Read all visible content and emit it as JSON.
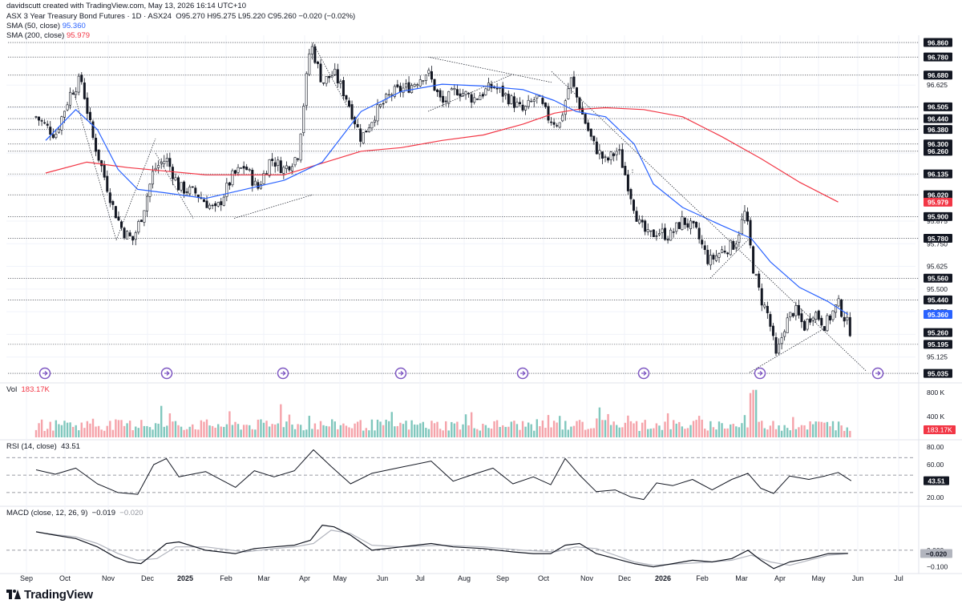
{
  "header": {
    "credit": "davidscutt created with TradingView.com, May 13, 2026 16:14 UTC+10",
    "symbol_line": "ASX 3 Year Treasury Bond Futures · 1D · ASX24",
    "ohlc": "O95.270  H95.275  L95.220  C95.260  −0.020 (−0.02%)",
    "sma50_label": "SMA (50, close)",
    "sma50_value": "95.360",
    "sma200_label": "SMA (200, close)",
    "sma200_value": "95.979",
    "vol_label": "Vol",
    "vol_value": "183.17K",
    "rsi_label": "RSI (14, close)",
    "rsi_value": "43.51",
    "macd_label": "MACD (close, 12, 26, 9)",
    "macd_value1": "−0.019",
    "macd_value2": "−0.020"
  },
  "brand": "TradingView",
  "colors": {
    "up": "#089981",
    "down": "#f23645",
    "sma50": "#2962ff",
    "sma200": "#f23645",
    "macd": "#131722",
    "signal": "#b2b5be",
    "grid": "#f0f3fa",
    "line_tag": "#131722"
  },
  "chart_data": [
    {
      "type": "candlestick",
      "title": "ASX 3 Year Treasury Bond Futures · 1D · ASX24",
      "ylim": [
        95.0,
        96.9
      ],
      "price_axis_ticks": [
        "96.625",
        "96.500",
        "96.375",
        "96.250",
        "96.125",
        "95.875",
        "95.750",
        "95.625",
        "95.500",
        "95.375",
        "95.250",
        "95.125"
      ],
      "horizontal_levels": [
        "96.860",
        "96.780",
        "96.680",
        "96.505",
        "96.440",
        "96.380",
        "96.300",
        "96.260",
        "96.135",
        "96.020",
        "95.900",
        "95.780",
        "95.560",
        "95.440",
        "95.195",
        "95.035"
      ],
      "badges": [
        {
          "label": "95.979",
          "kind": "sma200"
        },
        {
          "label": "95.360",
          "kind": "sma50"
        },
        {
          "label": "95.260",
          "kind": "last"
        }
      ],
      "time_axis": [
        "Sep",
        "Oct",
        "Nov",
        "Dec",
        "2025",
        "Feb",
        "Mar",
        "Apr",
        "May",
        "Jun",
        "Jul",
        "Aug",
        "Sep",
        "Oct",
        "Nov",
        "Dec",
        "2026",
        "Feb",
        "Mar",
        "Apr",
        "May",
        "Jun",
        "Jul"
      ],
      "anchors": [
        [
          "Sep",
          96.45
        ],
        [
          "Sep",
          96.35
        ],
        [
          "Oct",
          96.58
        ],
        [
          "Oct",
          96.66
        ],
        [
          "Oct",
          96.35
        ],
        [
          "Oct",
          96.15
        ],
        [
          "Nov",
          95.95
        ],
        [
          "Nov",
          95.82
        ],
        [
          "Nov",
          95.77
        ],
        [
          "Nov",
          95.92
        ],
        [
          "Dec",
          96.16
        ],
        [
          "Dec",
          96.22
        ],
        [
          "Dec",
          96.06
        ],
        [
          "2025",
          96.03
        ],
        [
          "2025",
          95.93
        ],
        [
          "Feb",
          96.12
        ],
        [
          "Feb",
          96.18
        ],
        [
          "Feb",
          96.05
        ],
        [
          "Mar",
          96.22
        ],
        [
          "Mar",
          96.16
        ],
        [
          "Mar",
          96.24
        ],
        [
          "Apr",
          96.86
        ],
        [
          "Apr",
          96.64
        ],
        [
          "Apr",
          96.69
        ],
        [
          "May",
          96.55
        ],
        [
          "May",
          96.33
        ],
        [
          "May",
          96.47
        ],
        [
          "Jun",
          96.58
        ],
        [
          "Jun",
          96.62
        ],
        [
          "Jul",
          96.7
        ],
        [
          "Jul",
          96.52
        ],
        [
          "Jul",
          96.6
        ],
        [
          "Aug",
          96.55
        ],
        [
          "Aug",
          96.62
        ],
        [
          "Sep",
          96.55
        ],
        [
          "Sep",
          96.48
        ],
        [
          "Sep",
          96.56
        ],
        [
          "Oct",
          96.44
        ],
        [
          "Oct",
          96.41
        ],
        [
          "Oct",
          96.66
        ],
        [
          "Oct",
          96.48
        ],
        [
          "Nov",
          96.3
        ],
        [
          "Nov",
          96.2
        ],
        [
          "Nov",
          96.27
        ],
        [
          "Dec",
          96.05
        ],
        [
          "Dec",
          95.86
        ],
        [
          "Dec",
          95.79
        ],
        [
          "Dec",
          95.82
        ],
        [
          "2026",
          95.79
        ],
        [
          "2026",
          95.88
        ],
        [
          "2026",
          95.82
        ],
        [
          "Feb",
          95.65
        ],
        [
          "Feb",
          95.71
        ],
        [
          "Feb",
          95.75
        ],
        [
          "Mar",
          95.93
        ],
        [
          "Mar",
          95.62
        ],
        [
          "Mar",
          95.45
        ],
        [
          "Mar",
          95.35
        ],
        [
          "Mar",
          95.12
        ],
        [
          "Apr",
          95.3
        ],
        [
          "Apr",
          95.39
        ],
        [
          "Apr",
          95.29
        ],
        [
          "Apr",
          95.38
        ],
        [
          "May",
          95.3
        ],
        [
          "May",
          95.42
        ],
        [
          "May",
          95.26
        ]
      ],
      "sma50": [
        [
          "Sep",
          96.32
        ],
        [
          "Oct",
          96.49
        ],
        [
          "Oct",
          96.38
        ],
        [
          "Nov",
          96.16
        ],
        [
          "Nov",
          96.05
        ],
        [
          "Dec",
          96.03
        ],
        [
          "2025",
          96.0
        ],
        [
          "Feb",
          96.05
        ],
        [
          "Mar",
          96.1
        ],
        [
          "Apr",
          96.2
        ],
        [
          "May",
          96.48
        ],
        [
          "Jun",
          96.59
        ],
        [
          "Jul",
          96.63
        ],
        [
          "Aug",
          96.62
        ],
        [
          "Sep",
          96.6
        ],
        [
          "Oct",
          96.54
        ],
        [
          "Oct",
          96.48
        ],
        [
          "Nov",
          96.45
        ],
        [
          "Dec",
          96.3
        ],
        [
          "Dec",
          96.08
        ],
        [
          "2026",
          95.95
        ],
        [
          "Feb",
          95.85
        ],
        [
          "Mar",
          95.78
        ],
        [
          "Mar",
          95.65
        ],
        [
          "Apr",
          95.51
        ],
        [
          "May",
          95.43
        ],
        [
          "May",
          95.36
        ]
      ],
      "sma200": [
        [
          "Sep",
          96.14
        ],
        [
          "Oct",
          96.2
        ],
        [
          "Nov",
          96.17
        ],
        [
          "Dec",
          96.15
        ],
        [
          "2025",
          96.13
        ],
        [
          "Mar",
          96.13
        ],
        [
          "May",
          96.26
        ],
        [
          "Jun",
          96.28
        ],
        [
          "Jul",
          96.32
        ],
        [
          "Aug",
          96.35
        ],
        [
          "Sep",
          96.41
        ],
        [
          "Oct",
          96.47
        ],
        [
          "Oct",
          96.49
        ],
        [
          "Nov",
          96.5
        ],
        [
          "Dec",
          96.49
        ],
        [
          "2026",
          96.45
        ],
        [
          "Feb",
          96.34
        ],
        [
          "Mar",
          96.22
        ],
        [
          "Apr",
          96.09
        ],
        [
          "May",
          95.98
        ]
      ],
      "trendlines": [
        {
          "from": [
            "Oct",
            96.6
          ],
          "to": [
            "Nov",
            95.77
          ]
        },
        {
          "from": [
            "Nov",
            95.77
          ],
          "to": [
            "Dec",
            96.33
          ]
        },
        {
          "from": [
            "Dec",
            96.25
          ],
          "to": [
            "2025",
            95.89
          ]
        },
        {
          "from": [
            "Feb",
            95.89
          ],
          "to": [
            "Apr",
            96.02
          ],
          "extend": [
            "May",
            96.43
          ]
        },
        {
          "from": [
            "Apr",
            96.86
          ],
          "to": [
            "May",
            96.5
          ]
        },
        {
          "from": [
            "Jul",
            96.78
          ],
          "to": [
            "Oct",
            96.64
          ]
        },
        {
          "from": [
            "Jul",
            96.48
          ],
          "to": [
            "Sep",
            96.68
          ]
        },
        {
          "from": [
            "Oct",
            96.7
          ],
          "to": [
            "Jun",
            95.05
          ]
        },
        {
          "from": [
            "Dec",
            96.14
          ],
          "to": [
            "Dec",
            96.16
          ]
        },
        {
          "from": [
            "Feb",
            95.56
          ],
          "to": [
            "Mar",
            95.78
          ]
        },
        {
          "from": [
            "Mar",
            95.04
          ],
          "to": [
            "May",
            95.29
          ]
        }
      ],
      "event_markers": [
        "Oct",
        "Nov",
        "2025",
        "Apr",
        "Jun",
        "Aug",
        "Oct",
        "Dec",
        "Mar",
        "May"
      ]
    },
    {
      "type": "bar",
      "title": "Vol",
      "axis_ticks": [
        "800 K",
        "400 K"
      ],
      "last": "183.17K",
      "ylim": [
        0,
        900000
      ],
      "spikes": [
        [
          "Dec",
          590000
        ],
        [
          "Mar",
          620000
        ],
        [
          "Nov",
          560000
        ],
        [
          "Mar",
          830000
        ],
        [
          "Mar",
          890000
        ]
      ]
    },
    {
      "type": "line",
      "title": "RSI (14, close)",
      "ylim": [
        18,
        84
      ],
      "axis_ticks": [
        "80.00",
        "60.00",
        "20.00"
      ],
      "bands": [
        70,
        50,
        30
      ],
      "last": "43.51",
      "values": [
        [
          "Sep",
          56
        ],
        [
          "Sep",
          51
        ],
        [
          "Oct",
          58
        ],
        [
          "Oct",
          40
        ],
        [
          "Nov",
          30
        ],
        [
          "Nov",
          28
        ],
        [
          "Dec",
          62
        ],
        [
          "Dec",
          69
        ],
        [
          "Dec",
          48
        ],
        [
          "2025",
          54
        ],
        [
          "Feb",
          36
        ],
        [
          "Feb",
          55
        ],
        [
          "Mar",
          48
        ],
        [
          "Mar",
          55
        ],
        [
          "Apr",
          79
        ],
        [
          "Apr",
          60
        ],
        [
          "May",
          40
        ],
        [
          "May",
          52
        ],
        [
          "Jun",
          59
        ],
        [
          "Jul",
          66
        ],
        [
          "Jul",
          43
        ],
        [
          "Aug",
          51
        ],
        [
          "Aug",
          58
        ],
        [
          "Sep",
          40
        ],
        [
          "Sep",
          48
        ],
        [
          "Oct",
          39
        ],
        [
          "Oct",
          69
        ],
        [
          "Oct",
          50
        ],
        [
          "Nov",
          31
        ],
        [
          "Nov",
          33
        ],
        [
          "Dec",
          25
        ],
        [
          "Dec",
          22
        ],
        [
          "Dec",
          41
        ],
        [
          "2026",
          38
        ],
        [
          "2026",
          45
        ],
        [
          "Feb",
          33
        ],
        [
          "Feb",
          45
        ],
        [
          "Mar",
          52
        ],
        [
          "Mar",
          35
        ],
        [
          "Mar",
          29
        ],
        [
          "Apr",
          49
        ],
        [
          "Apr",
          45
        ],
        [
          "May",
          49
        ],
        [
          "May",
          53
        ],
        [
          "May",
          43.51
        ]
      ]
    },
    {
      "type": "line",
      "title": "MACD (close, 12, 26, 9)",
      "ylim": [
        -0.13,
        0.22
      ],
      "axis_ticks": [
        "0.000",
        "−0.100"
      ],
      "last": "−0.020",
      "macd": [
        [
          "Sep",
          0.11
        ],
        [
          "Sep",
          0.09
        ],
        [
          "Oct",
          0.07
        ],
        [
          "Oct",
          0.02
        ],
        [
          "Nov",
          -0.04
        ],
        [
          "Nov",
          -0.07
        ],
        [
          "Nov",
          -0.08
        ],
        [
          "Dec",
          -0.02
        ],
        [
          "Dec",
          0.04
        ],
        [
          "Dec",
          0.05
        ],
        [
          "2025",
          0.0
        ],
        [
          "Feb",
          -0.02
        ],
        [
          "Feb",
          0.01
        ],
        [
          "Mar",
          0.02
        ],
        [
          "Mar",
          0.03
        ],
        [
          "Apr",
          0.06
        ],
        [
          "Apr",
          0.15
        ],
        [
          "Apr",
          0.14
        ],
        [
          "May",
          0.09
        ],
        [
          "May",
          0.0
        ],
        [
          "Jun",
          0.02
        ],
        [
          "Jul",
          0.04
        ],
        [
          "Jul",
          0.02
        ],
        [
          "Aug",
          0.01
        ],
        [
          "Sep",
          -0.01
        ],
        [
          "Sep",
          -0.02
        ],
        [
          "Oct",
          -0.02
        ],
        [
          "Oct",
          0.03
        ],
        [
          "Oct",
          0.04
        ],
        [
          "Nov",
          -0.02
        ],
        [
          "Nov",
          -0.05
        ],
        [
          "Dec",
          -0.08
        ],
        [
          "Dec",
          -0.1
        ],
        [
          "2026",
          -0.08
        ],
        [
          "2026",
          -0.06
        ],
        [
          "Feb",
          -0.07
        ],
        [
          "Feb",
          -0.05
        ],
        [
          "Mar",
          0.0
        ],
        [
          "Mar",
          -0.06
        ],
        [
          "Mar",
          -0.11
        ],
        [
          "Apr",
          -0.07
        ],
        [
          "Apr",
          -0.05
        ],
        [
          "May",
          -0.02
        ],
        [
          "May",
          -0.019
        ]
      ],
      "signal": [
        [
          "Sep",
          0.1
        ],
        [
          "Oct",
          0.08
        ],
        [
          "Oct",
          0.04
        ],
        [
          "Nov",
          -0.02
        ],
        [
          "Nov",
          -0.06
        ],
        [
          "Dec",
          -0.05
        ],
        [
          "Dec",
          0.02
        ],
        [
          "2025",
          0.02
        ],
        [
          "Feb",
          -0.01
        ],
        [
          "Mar",
          0.01
        ],
        [
          "Mar",
          0.02
        ],
        [
          "Apr",
          0.04
        ],
        [
          "Apr",
          0.12
        ],
        [
          "May",
          0.1
        ],
        [
          "May",
          0.03
        ],
        [
          "Jun",
          0.02
        ],
        [
          "Jul",
          0.03
        ],
        [
          "Aug",
          0.02
        ],
        [
          "Sep",
          0.0
        ],
        [
          "Oct",
          -0.01
        ],
        [
          "Oct",
          0.02
        ],
        [
          "Nov",
          0.01
        ],
        [
          "Nov",
          -0.03
        ],
        [
          "Dec",
          -0.07
        ],
        [
          "Dec",
          -0.09
        ],
        [
          "2026",
          -0.08
        ],
        [
          "Feb",
          -0.07
        ],
        [
          "Feb",
          -0.06
        ],
        [
          "Mar",
          -0.03
        ],
        [
          "Mar",
          -0.07
        ],
        [
          "Apr",
          -0.09
        ],
        [
          "Apr",
          -0.06
        ],
        [
          "May",
          -0.03
        ],
        [
          "May",
          -0.02
        ]
      ]
    }
  ]
}
